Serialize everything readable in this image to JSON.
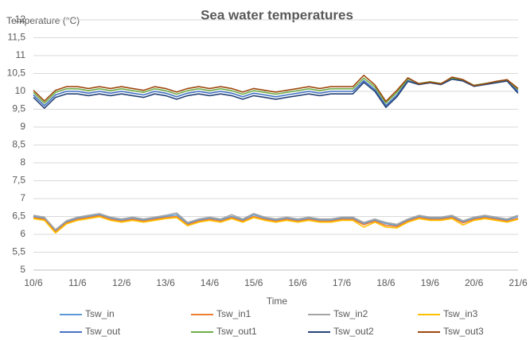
{
  "chart_data": {
    "type": "line",
    "title": "Sea water temperatures",
    "y_label": "Temperature (°C)",
    "x_label": "Time",
    "categories": [
      "10/6",
      null,
      null,
      null,
      "11/6",
      null,
      null,
      null,
      "12/6",
      null,
      null,
      null,
      "13/6",
      null,
      null,
      null,
      "14/6",
      null,
      null,
      null,
      "15/6",
      null,
      null,
      null,
      "16/6",
      null,
      null,
      null,
      "17/6",
      null,
      null,
      null,
      "18/6",
      null,
      null,
      null,
      "19/6",
      null,
      null,
      null,
      "20/6",
      null,
      null,
      null,
      "21/6"
    ],
    "ylim": [
      5,
      12
    ],
    "yticks": [
      5,
      {
        "value": 5.5,
        "label": "5,5"
      },
      6,
      {
        "value": 6.5,
        "label": "6,5"
      },
      7,
      {
        "value": 7.5,
        "label": "7,5"
      },
      8,
      {
        "value": 8.5,
        "label": "8,5"
      },
      9,
      {
        "value": 9.5,
        "label": "9,5"
      },
      10,
      {
        "value": 10.5,
        "label": "10,5"
      },
      11,
      {
        "value": 11.5,
        "label": "11,5"
      },
      12
    ],
    "grid": true,
    "series": [
      {
        "name": "Tsw_in",
        "color": "#5b9bd5",
        "values": [
          6.5,
          6.45,
          6.1,
          6.35,
          6.45,
          6.5,
          6.55,
          6.45,
          6.4,
          6.45,
          6.4,
          6.45,
          6.5,
          6.55,
          6.3,
          6.4,
          6.45,
          6.4,
          6.5,
          6.4,
          6.55,
          6.45,
          6.4,
          6.45,
          6.4,
          6.45,
          6.4,
          6.4,
          6.45,
          6.45,
          6.3,
          6.4,
          6.3,
          6.25,
          6.4,
          6.5,
          6.45,
          6.45,
          6.5,
          6.35,
          6.45,
          6.5,
          6.45,
          6.4,
          6.5
        ]
      },
      {
        "name": "Tsw_in1",
        "color": "#ed7d31",
        "values": [
          6.47,
          6.42,
          6.07,
          6.32,
          6.42,
          6.47,
          6.52,
          6.42,
          6.37,
          6.42,
          6.37,
          6.42,
          6.47,
          6.5,
          6.27,
          6.37,
          6.42,
          6.37,
          6.47,
          6.37,
          6.5,
          6.42,
          6.37,
          6.42,
          6.37,
          6.42,
          6.37,
          6.37,
          6.42,
          6.42,
          6.27,
          6.37,
          6.25,
          6.22,
          6.37,
          6.47,
          6.42,
          6.42,
          6.47,
          6.32,
          6.42,
          6.47,
          6.42,
          6.37,
          6.45
        ]
      },
      {
        "name": "Tsw_in2",
        "color": "#a5a5a5",
        "values": [
          6.53,
          6.48,
          6.13,
          6.38,
          6.48,
          6.53,
          6.58,
          6.48,
          6.43,
          6.48,
          6.43,
          6.48,
          6.53,
          6.6,
          6.33,
          6.43,
          6.48,
          6.43,
          6.55,
          6.43,
          6.58,
          6.48,
          6.43,
          6.48,
          6.43,
          6.48,
          6.43,
          6.43,
          6.48,
          6.48,
          6.33,
          6.43,
          6.33,
          6.28,
          6.43,
          6.53,
          6.48,
          6.48,
          6.53,
          6.38,
          6.48,
          6.53,
          6.48,
          6.43,
          6.53
        ]
      },
      {
        "name": "Tsw_in3",
        "color": "#ffc000",
        "values": [
          6.44,
          6.39,
          6.04,
          6.29,
          6.39,
          6.44,
          6.49,
          6.39,
          6.34,
          6.39,
          6.34,
          6.39,
          6.44,
          6.47,
          6.24,
          6.34,
          6.39,
          6.34,
          6.44,
          6.34,
          6.47,
          6.39,
          6.34,
          6.39,
          6.34,
          6.39,
          6.34,
          6.34,
          6.39,
          6.39,
          6.2,
          6.34,
          6.2,
          6.18,
          6.34,
          6.44,
          6.39,
          6.39,
          6.44,
          6.26,
          6.39,
          6.44,
          6.39,
          6.34,
          6.42
        ]
      },
      {
        "name": "Tsw_out",
        "color": "#4472c4",
        "values": [
          9.9,
          9.6,
          9.9,
          10.0,
          10.0,
          9.95,
          10.0,
          9.95,
          10.0,
          9.95,
          9.9,
          10.0,
          9.95,
          9.85,
          9.95,
          10.0,
          9.95,
          10.0,
          9.95,
          9.85,
          9.95,
          9.9,
          9.85,
          9.9,
          9.95,
          10.0,
          9.95,
          10.0,
          10.0,
          10.0,
          10.3,
          10.05,
          9.6,
          9.9,
          10.3,
          10.2,
          10.25,
          10.2,
          10.35,
          10.3,
          10.15,
          10.2,
          10.25,
          10.3,
          10.0
        ]
      },
      {
        "name": "Tsw_out1",
        "color": "#70ad47",
        "values": [
          9.97,
          9.67,
          9.97,
          10.07,
          10.07,
          10.02,
          10.07,
          10.02,
          10.07,
          10.02,
          9.97,
          10.07,
          10.02,
          9.92,
          10.02,
          10.07,
          10.02,
          10.07,
          10.02,
          9.92,
          10.02,
          9.97,
          9.92,
          9.97,
          10.02,
          10.07,
          10.02,
          10.07,
          10.07,
          10.07,
          10.37,
          10.12,
          9.67,
          9.97,
          10.35,
          10.22,
          10.27,
          10.22,
          10.37,
          10.32,
          10.17,
          10.22,
          10.27,
          10.32,
          10.05
        ]
      },
      {
        "name": "Tsw_out2",
        "color": "#264478",
        "values": [
          9.83,
          9.53,
          9.83,
          9.93,
          9.93,
          9.88,
          9.93,
          9.88,
          9.93,
          9.88,
          9.83,
          9.93,
          9.88,
          9.78,
          9.88,
          9.93,
          9.88,
          9.93,
          9.88,
          9.78,
          9.88,
          9.83,
          9.78,
          9.83,
          9.88,
          9.93,
          9.88,
          9.93,
          9.93,
          9.93,
          10.25,
          10.0,
          9.55,
          9.85,
          10.28,
          10.19,
          10.24,
          10.19,
          10.34,
          10.29,
          10.14,
          10.19,
          10.24,
          10.29,
          9.95
        ]
      },
      {
        "name": "Tsw_out3",
        "color": "#9e480e",
        "values": [
          10.03,
          9.73,
          10.03,
          10.13,
          10.13,
          10.08,
          10.13,
          10.08,
          10.13,
          10.08,
          10.03,
          10.13,
          10.08,
          9.98,
          10.08,
          10.13,
          10.08,
          10.13,
          10.08,
          9.98,
          10.08,
          10.03,
          9.98,
          10.03,
          10.08,
          10.13,
          10.08,
          10.13,
          10.13,
          10.13,
          10.45,
          10.18,
          9.72,
          10.03,
          10.38,
          10.21,
          10.26,
          10.21,
          10.4,
          10.33,
          10.16,
          10.21,
          10.28,
          10.33,
          10.08
        ]
      }
    ]
  }
}
